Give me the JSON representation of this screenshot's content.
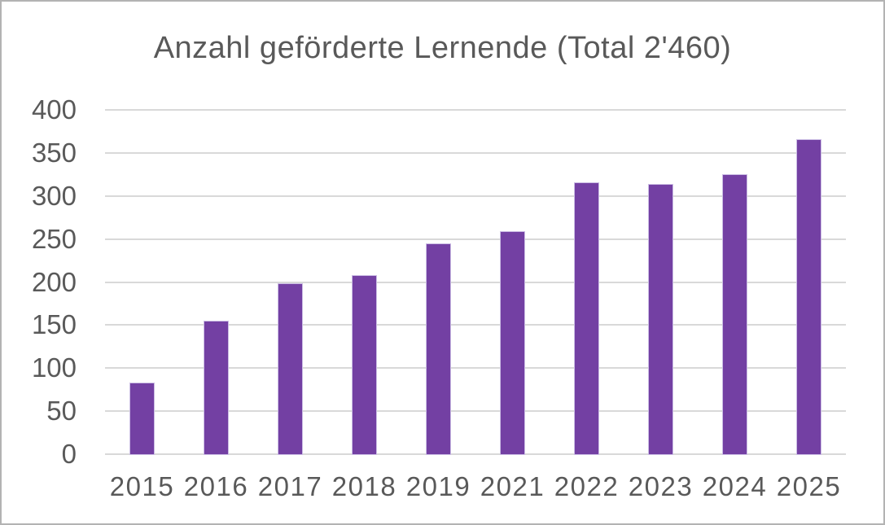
{
  "chart_data": {
    "type": "bar",
    "title": "Anzahl geförderte Lernende (Total 2'460)",
    "total": 2460,
    "categories": [
      "2015",
      "2016",
      "2017",
      "2018",
      "2019",
      "2021",
      "2022",
      "2023",
      "2024",
      "2025"
    ],
    "values": [
      82,
      154,
      198,
      207,
      244,
      258,
      315,
      313,
      324,
      365
    ],
    "xlabel": "",
    "ylabel": "",
    "ylim": [
      0,
      400
    ],
    "ytick_step": 50,
    "yticks": [
      400,
      350,
      300,
      250,
      200,
      150,
      100,
      50,
      0
    ],
    "grid": true,
    "legend_position": "none",
    "bar_color": "#7340a3",
    "bar_edge_color": "#cbbde4",
    "gridline_color": "#d9d9d9",
    "text_color": "#595959",
    "background_color": "#ffffff",
    "frame_border_color": "#b3b3b3"
  }
}
